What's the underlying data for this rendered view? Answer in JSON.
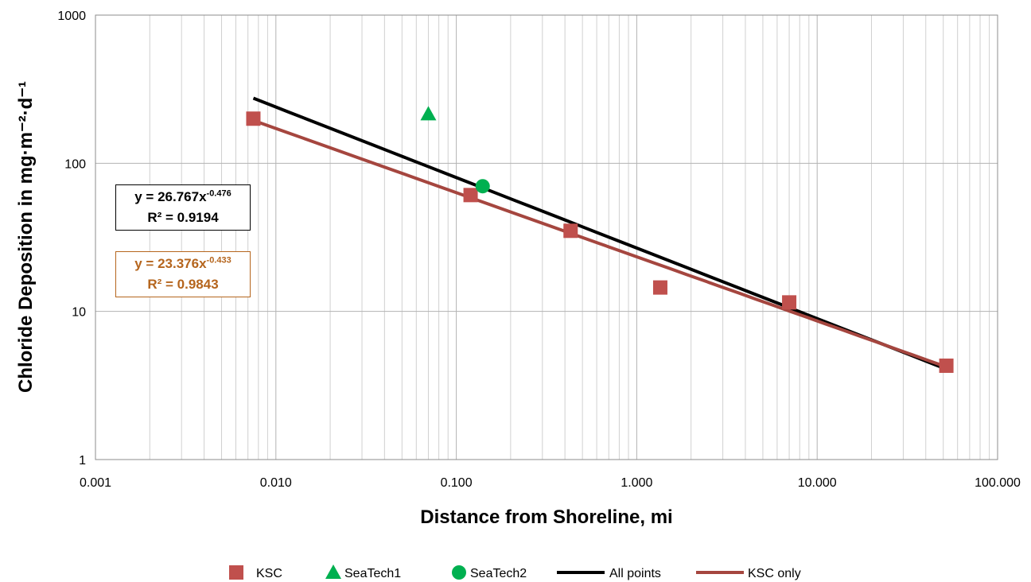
{
  "chart_data": {
    "type": "scatter",
    "xscale": "log",
    "yscale": "log",
    "xlim": [
      0.001,
      100
    ],
    "ylim": [
      1,
      1000
    ],
    "xlabel": "Distance from Shoreline, mi",
    "ylabel": "Chloride Deposition in mg·m⁻²·d⁻¹",
    "x_tick_labels": [
      "0.001",
      "0.010",
      "0.100",
      "1.000",
      "10.000",
      "100.000"
    ],
    "y_tick_labels": [
      "1",
      "10",
      "100",
      "1000"
    ],
    "grid": "major and minor",
    "legend_position": "bottom",
    "series": [
      {
        "name": "KSC",
        "marker": "square",
        "color": "#c0504d",
        "points": [
          [
            0.0075,
            200
          ],
          [
            0.12,
            61
          ],
          [
            0.43,
            35
          ],
          [
            1.35,
            14.5
          ],
          [
            7.0,
            11.5
          ],
          [
            52,
            4.3
          ]
        ]
      },
      {
        "name": "SeaTech1",
        "marker": "triangle",
        "color": "#00b050",
        "points": [
          [
            0.07,
            215
          ]
        ]
      },
      {
        "name": "SeaTech2",
        "marker": "circle",
        "color": "#00b050",
        "points": [
          [
            0.14,
            70
          ]
        ]
      }
    ],
    "trendlines": [
      {
        "name": "All points",
        "color": "#000000",
        "coef": 26.767,
        "exp": -0.476,
        "x_range": [
          0.0075,
          52
        ],
        "equation": "y = 26.767x",
        "exponent_label": "-0.476",
        "r2": "R² = 0.9194"
      },
      {
        "name": "KSC only",
        "color": "#a5463f",
        "coef": 23.376,
        "exp": -0.433,
        "x_range": [
          0.0075,
          52
        ],
        "equation": "y = 23.376x",
        "exponent_label": "-0.433",
        "r2": "R² = 0.9843"
      }
    ]
  }
}
